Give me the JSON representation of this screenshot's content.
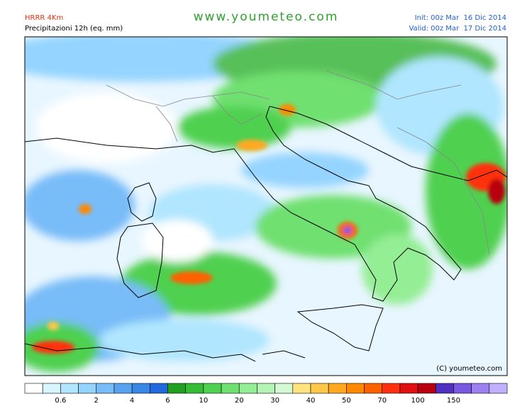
{
  "header": {
    "model": "HRRR 4Km",
    "field": "Precipitazioni 12h (eq. mm)",
    "site": "www.youmeteo.com",
    "init": "Init: 00z Mar  16 Dic 2014",
    "valid": "Valid: 00z Mar  17 Dic 2014"
  },
  "map": {
    "copyright": "(C) youmeteo.com"
  },
  "colorbar": {
    "colors": [
      "#ffffff",
      "#d8f6ff",
      "#b0e6ff",
      "#94d4ff",
      "#78bcf8",
      "#58a2f0",
      "#3a86e6",
      "#2068dc",
      "#20a020",
      "#34bc34",
      "#50d050",
      "#70e070",
      "#94ee94",
      "#b4f4b4",
      "#d4fad4",
      "#ffe480",
      "#ffc848",
      "#ffa820",
      "#ff8800",
      "#ff6000",
      "#ff3010",
      "#e01010",
      "#b80010",
      "#5030c0",
      "#7858e0",
      "#9c80f0",
      "#c0b0ff"
    ],
    "labels": [
      0.6,
      2,
      4,
      6,
      10,
      20,
      30,
      40,
      50,
      70,
      100,
      150
    ]
  }
}
